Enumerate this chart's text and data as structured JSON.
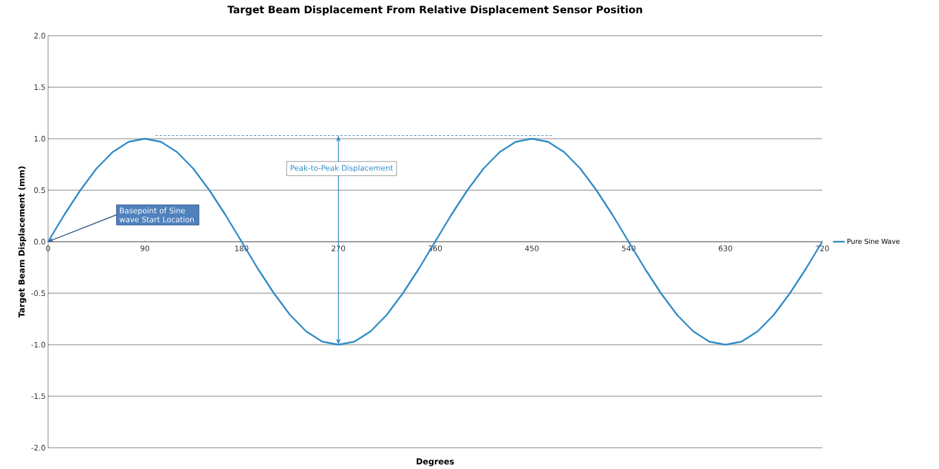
{
  "chart_data": {
    "type": "line",
    "title": "Target Beam Displacement From Relative Displacement Sensor Position",
    "xlabel": "Degrees",
    "ylabel": "Target Beam Displacement (mm)",
    "x": [
      0,
      15,
      30,
      45,
      60,
      75,
      90,
      105,
      120,
      135,
      150,
      165,
      180,
      195,
      210,
      225,
      240,
      255,
      270,
      285,
      300,
      315,
      330,
      345,
      360,
      375,
      390,
      405,
      420,
      435,
      450,
      465,
      480,
      495,
      510,
      525,
      540,
      555,
      570,
      585,
      600,
      615,
      630,
      645,
      660,
      675,
      690,
      705,
      720
    ],
    "series": [
      {
        "name": "Pure Sine Wave",
        "color": "#2e8bc6",
        "values": [
          0,
          0.26,
          0.5,
          0.71,
          0.87,
          0.97,
          1,
          0.97,
          0.87,
          0.71,
          0.5,
          0.26,
          0,
          -0.26,
          -0.5,
          -0.71,
          -0.87,
          -0.97,
          -1,
          -0.97,
          -0.87,
          -0.71,
          -0.5,
          -0.26,
          0,
          0.26,
          0.5,
          0.71,
          0.87,
          0.97,
          1,
          0.97,
          0.87,
          0.71,
          0.5,
          0.26,
          0,
          -0.26,
          -0.5,
          -0.71,
          -0.87,
          -0.97,
          -1,
          -0.97,
          -0.87,
          -0.71,
          -0.5,
          -0.26,
          0
        ]
      }
    ],
    "xlim": [
      0,
      720
    ],
    "xticks": [
      0,
      90,
      180,
      270,
      360,
      450,
      540,
      630,
      720
    ],
    "ylim": [
      -2,
      2
    ],
    "yticks": [
      {
        "value": -2,
        "label": "-2.0"
      },
      {
        "value": -1.5,
        "label": "-1.5"
      },
      {
        "value": -1,
        "label": "-1.0"
      },
      {
        "value": -0.5,
        "label": "-0.5"
      },
      {
        "value": 0,
        "label": "0.0"
      },
      {
        "value": 0.5,
        "label": "0.5"
      },
      {
        "value": 1,
        "label": "1.0"
      },
      {
        "value": 1.5,
        "label": "1.5"
      },
      {
        "value": 2,
        "label": "2.0"
      }
    ],
    "grid": "y",
    "legend": "right",
    "ref_lines": [
      {
        "axis": "y",
        "value": 1.03,
        "color": "#2e8bc6",
        "line_style": "dashed"
      }
    ],
    "annotations": [
      {
        "text": "Basepoint of Sine wave Start Location",
        "x": 0,
        "y": 0
      },
      "Peak-to-Peak Displacement"
    ]
  }
}
